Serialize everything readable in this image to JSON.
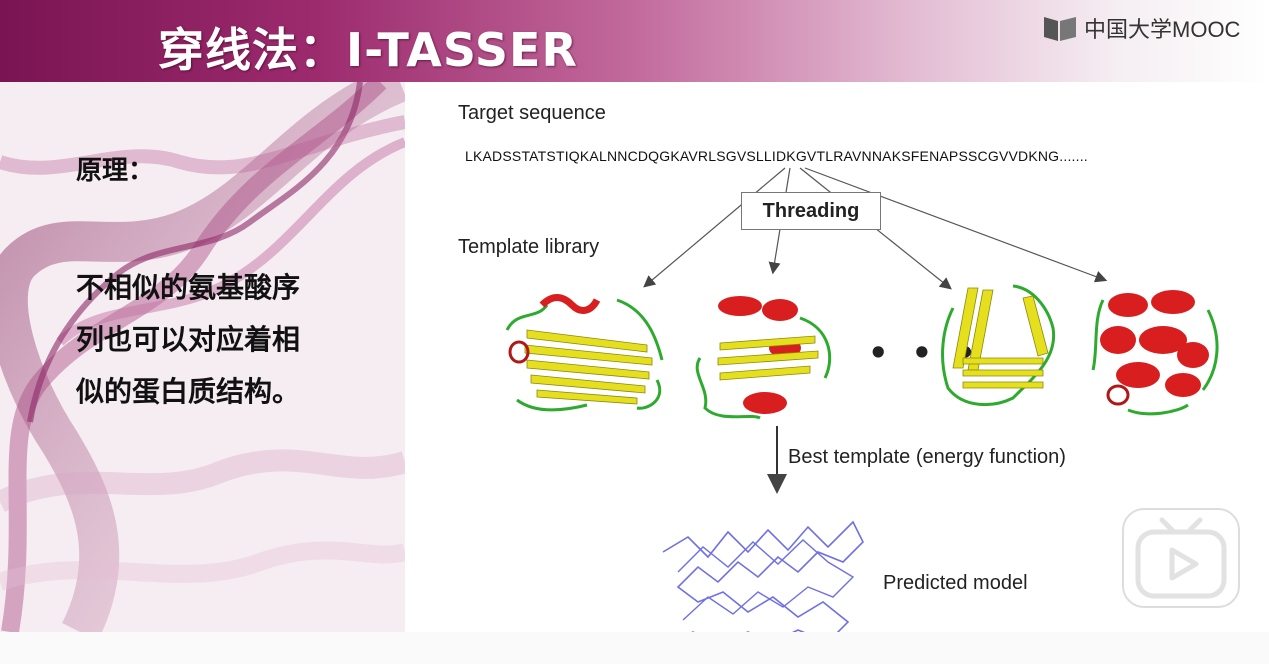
{
  "slide": {
    "title": "穿线法：I-TASSER",
    "brand": "中国大学MOOC",
    "heading": "原理：",
    "body_lines": [
      "不相似的氨基酸序",
      "列也可以对应着相",
      "似的蛋白质结构。"
    ]
  },
  "diagram": {
    "target_label": "Target sequence",
    "sequence": "LKADSSTATSTIQKALNNCDQGKAVRLSGVSLLIDKGVTLRAVNNAKSFENAPSSCGVVDKNG.......",
    "threading_label": "Threading",
    "template_label": "Template library",
    "ellipsis": "• • •",
    "best_label": "Best template (energy function)",
    "model_label": "Predicted model"
  },
  "colors": {
    "title_bar": "#9c2b6e",
    "helix": "#d81e1e",
    "sheet": "#e6df1e",
    "loop": "#2eaa2e",
    "model_trace": "#6f6fe6"
  },
  "icons": [
    "mooc-logo-icon",
    "play-icon"
  ]
}
